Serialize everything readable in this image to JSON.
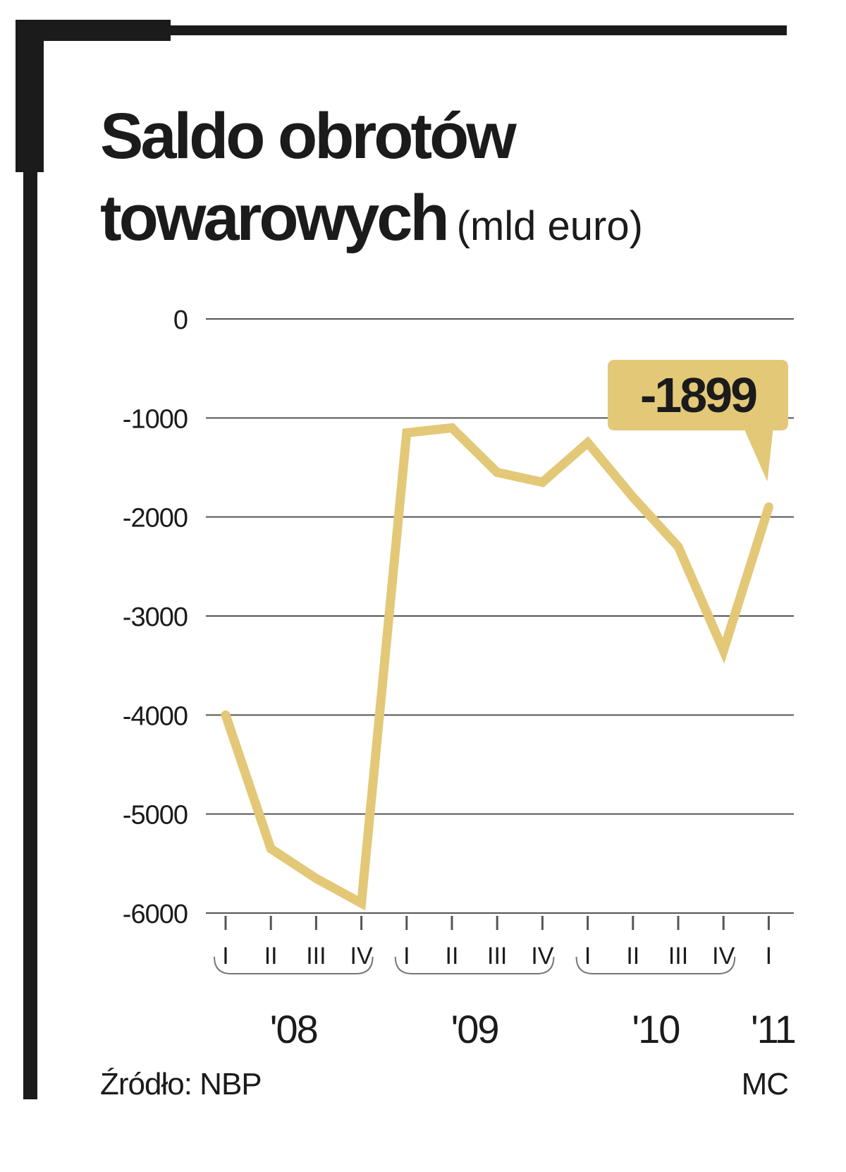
{
  "title_line1": "Saldo obrotów",
  "title_line2": "towarowych",
  "unit": "(mld euro)",
  "source": "Źródło: NBP",
  "credit": "MC",
  "colors": {
    "line": "#e3c878",
    "label_bg": "#e3c878",
    "text": "#1b1b1b",
    "grid": "#555555"
  },
  "chart_data": {
    "type": "line",
    "ylim": [
      -6000,
      0
    ],
    "yticks": [
      "0",
      "-1000",
      "-2000",
      "-3000",
      "-4000",
      "-5000",
      "-6000"
    ],
    "ytick_values": [
      0,
      -1000,
      -2000,
      -3000,
      -4000,
      -5000,
      -6000
    ],
    "categories": [
      "I",
      "II",
      "III",
      "IV",
      "I",
      "II",
      "III",
      "IV",
      "I",
      "II",
      "III",
      "IV",
      "I"
    ],
    "groups": [
      {
        "label": "'08",
        "start": 0,
        "end": 3
      },
      {
        "label": "'09",
        "start": 4,
        "end": 7
      },
      {
        "label": "'10",
        "start": 8,
        "end": 11
      },
      {
        "label": "'11",
        "start": 12,
        "end": 12
      }
    ],
    "series": [
      {
        "values": [
          -4000,
          -5350,
          -5650,
          -5900,
          -1150,
          -1100,
          -1550,
          -1650,
          -1250,
          -1800,
          -2300,
          -3350,
          -1899
        ]
      }
    ],
    "annotation": {
      "text": "-1899",
      "index": 12
    },
    "grid": true
  }
}
